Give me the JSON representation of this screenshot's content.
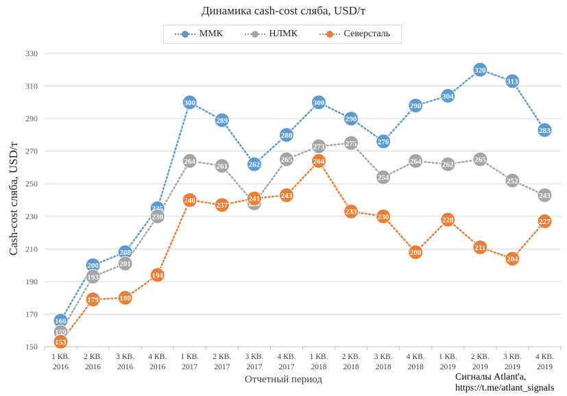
{
  "chart_data": {
    "type": "line",
    "title": "Динамика cash-cost сляба, USD/т",
    "xlabel": "Отчетный период",
    "ylabel": "Cash-cost сляба, USD/т",
    "ylim": [
      150,
      330
    ],
    "yticks": [
      150,
      170,
      190,
      210,
      230,
      250,
      270,
      290,
      310,
      330
    ],
    "grid": true,
    "legend_position": "top",
    "categories": [
      [
        "1 КВ.",
        "2016"
      ],
      [
        "2 КВ.",
        "2016"
      ],
      [
        "3 КВ.",
        "2016"
      ],
      [
        "4 КВ.",
        "2016"
      ],
      [
        "1 КВ.",
        "2017"
      ],
      [
        "2 КВ.",
        "2017"
      ],
      [
        "3 КВ.",
        "2017"
      ],
      [
        "4 КВ.",
        "2017"
      ],
      [
        "1 КВ.",
        "2018"
      ],
      [
        "2 КВ.",
        "2018"
      ],
      [
        "3 КВ.",
        "2018"
      ],
      [
        "4 КВ.",
        "2018"
      ],
      [
        "1 КВ.",
        "2019"
      ],
      [
        "2 КВ.",
        "2019"
      ],
      [
        "3 КВ.",
        "2019"
      ],
      [
        "4 КВ.",
        "2019"
      ]
    ],
    "series": [
      {
        "name": "ММК",
        "color": "#5b9bd5",
        "values": [
          166,
          200,
          208,
          235,
          300,
          289,
          262,
          280,
          300,
          290,
          276,
          298,
          304,
          320,
          313,
          283
        ]
      },
      {
        "name": "НЛМК",
        "color": "#a5a5a5",
        "values": [
          159,
          193,
          201,
          230,
          264,
          261,
          238,
          265,
          273,
          275,
          254,
          264,
          262,
          265,
          252,
          243
        ]
      },
      {
        "name": "Северсталь",
        "color": "#ed7d31",
        "values": [
          153,
          179,
          180,
          194,
          240,
          237,
          241,
          243,
          264,
          233,
          230,
          208,
          228,
          211,
          204,
          227
        ]
      }
    ]
  },
  "source_text": [
    "Сигналы Atlant'a,",
    "https://t.me/atlant_signals"
  ]
}
